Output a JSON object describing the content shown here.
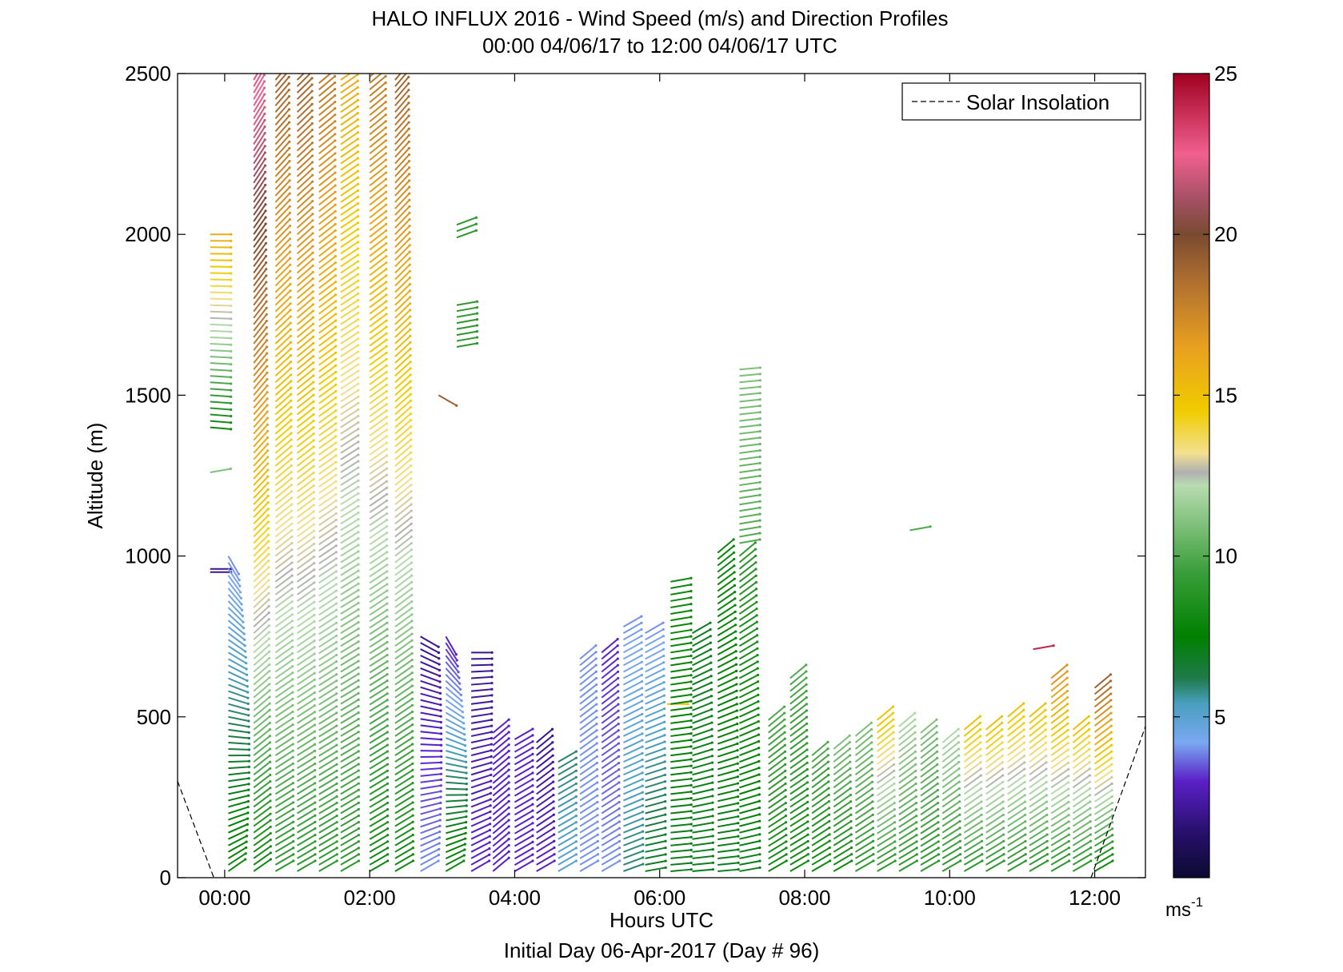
{
  "chart_data": {
    "type": "wind-barb-profile",
    "title": "HALO INFLUX 2016 - Wind Speed (m/s) and Direction Profiles",
    "subtitle": "00:00 04/06/17 to 12:00 04/06/17  UTC",
    "xlabel": "Hours UTC",
    "xlabel2": "Initial Day 06-Apr-2017 (Day # 96)",
    "ylabel": "Altitude (m)",
    "xlim": [
      -0.65,
      12.7
    ],
    "ylim": [
      0,
      2500
    ],
    "x_ticks": [
      0,
      2,
      4,
      6,
      8,
      10,
      12
    ],
    "x_tick_labels": [
      "00:00",
      "02:00",
      "04:00",
      "06:00",
      "08:00",
      "10:00",
      "12:00"
    ],
    "y_ticks": [
      0,
      500,
      1000,
      1500,
      2000,
      2500
    ],
    "y_tick_labels": [
      "0",
      "500",
      "1000",
      "1500",
      "2000",
      "2500"
    ],
    "grid": false,
    "legend": {
      "position": "top-right",
      "entries": [
        "Solar Insolation"
      ]
    },
    "colorbar": {
      "range": [
        0,
        25
      ],
      "ticks": [
        5,
        10,
        15,
        20,
        25
      ],
      "tick_labels": [
        "5",
        "10",
        "15",
        "20",
        "25"
      ],
      "unit_label": "ms",
      "unit_exponent": "-1",
      "colors": [
        {
          "value": 0,
          "color": "#0a0a30"
        },
        {
          "value": 1.5,
          "color": "#2a1070"
        },
        {
          "value": 3,
          "color": "#5a20c8"
        },
        {
          "value": 4.2,
          "color": "#7aa8f0"
        },
        {
          "value": 5.4,
          "color": "#4a9fc0"
        },
        {
          "value": 6.2,
          "color": "#1f7a4a"
        },
        {
          "value": 7.5,
          "color": "#008000"
        },
        {
          "value": 9.5,
          "color": "#3a9e3a"
        },
        {
          "value": 12.2,
          "color": "#b8dcb0"
        },
        {
          "value": 12.6,
          "color": "#b0b0b0"
        },
        {
          "value": 13.2,
          "color": "#f2e090"
        },
        {
          "value": 14.5,
          "color": "#f0cc00"
        },
        {
          "value": 16.5,
          "color": "#e8a020"
        },
        {
          "value": 18.5,
          "color": "#b07030"
        },
        {
          "value": 20,
          "color": "#7a4a30"
        },
        {
          "value": 21,
          "color": "#a05060"
        },
        {
          "value": 22.5,
          "color": "#f06090"
        },
        {
          "value": 25,
          "color": "#a00020"
        }
      ]
    },
    "solar_insolation": [
      {
        "name": "Solar Insolation",
        "points": [
          [
            -0.65,
            300
          ],
          [
            -0.15,
            0
          ]
        ]
      },
      {
        "name": "Solar Insolation",
        "points": [
          [
            11.95,
            0
          ],
          [
            12.7,
            470
          ]
        ]
      }
    ],
    "profiles": [
      {
        "time": -0.2,
        "top": 1260,
        "bottom": 1260,
        "speed": [
          11,
          11
        ],
        "dir": [
          -10,
          -10
        ]
      },
      {
        "time": -0.2,
        "top": 2000,
        "bottom": 1400,
        "speed": [
          16,
          8
        ],
        "dir": [
          0,
          5
        ]
      },
      {
        "time": -0.2,
        "top": 960,
        "bottom": 950,
        "speed": [
          2,
          2
        ],
        "dir": [
          0,
          0
        ]
      },
      {
        "time": 0.05,
        "top": 1000,
        "bottom": 20,
        "speed": [
          4,
          8
        ],
        "dir": [
          60,
          -35
        ]
      },
      {
        "time": 0.4,
        "top": 2500,
        "bottom": 20,
        "speed": [
          23,
          8
        ],
        "dir": [
          -60,
          -35
        ]
      },
      {
        "time": 0.7,
        "top": 2500,
        "bottom": 20,
        "speed": [
          19,
          9
        ],
        "dir": [
          -50,
          -30
        ]
      },
      {
        "time": 1.0,
        "top": 2500,
        "bottom": 20,
        "speed": [
          19,
          9
        ],
        "dir": [
          -45,
          -30
        ]
      },
      {
        "time": 1.3,
        "top": 2470,
        "bottom": 20,
        "speed": [
          18,
          9
        ],
        "dir": [
          -40,
          -30
        ]
      },
      {
        "time": 1.6,
        "top": 2500,
        "bottom": 20,
        "speed": [
          16,
          9
        ],
        "dir": [
          -35,
          -30
        ]
      },
      {
        "time": 2.0,
        "top": 2490,
        "bottom": 20,
        "speed": [
          18,
          8
        ],
        "dir": [
          -40,
          -30
        ]
      },
      {
        "time": 2.35,
        "top": 2500,
        "bottom": 20,
        "speed": [
          19,
          8
        ],
        "dir": [
          -50,
          -30
        ]
      },
      {
        "time": 2.7,
        "top": 750,
        "bottom": 20,
        "speed": [
          2,
          4
        ],
        "dir": [
          30,
          -30
        ]
      },
      {
        "time": 2.95,
        "top": 1500,
        "bottom": 1500,
        "speed": [
          19,
          19
        ],
        "dir": [
          30,
          30
        ]
      },
      {
        "time": 3.05,
        "top": 750,
        "bottom": 20,
        "speed": [
          3,
          8
        ],
        "dir": [
          60,
          -30
        ]
      },
      {
        "time": 3.2,
        "top": 2030,
        "bottom": 1990,
        "speed": [
          9,
          9
        ],
        "dir": [
          -20,
          -20
        ]
      },
      {
        "time": 3.2,
        "top": 1780,
        "bottom": 1650,
        "speed": [
          9,
          9
        ],
        "dir": [
          -10,
          -10
        ]
      },
      {
        "time": 3.4,
        "top": 700,
        "bottom": 20,
        "speed": [
          2,
          3
        ],
        "dir": [
          0,
          -30
        ]
      },
      {
        "time": 3.7,
        "top": 450,
        "bottom": 20,
        "speed": [
          3,
          3
        ],
        "dir": [
          -40,
          -40
        ]
      },
      {
        "time": 4.0,
        "top": 430,
        "bottom": 20,
        "speed": [
          3,
          3
        ],
        "dir": [
          -30,
          -30
        ]
      },
      {
        "time": 4.3,
        "top": 420,
        "bottom": 20,
        "speed": [
          2,
          3
        ],
        "dir": [
          -40,
          -30
        ]
      },
      {
        "time": 4.6,
        "top": 360,
        "bottom": 20,
        "speed": [
          6,
          5
        ],
        "dir": [
          -30,
          -30
        ]
      },
      {
        "time": 4.9,
        "top": 680,
        "bottom": 20,
        "speed": [
          4,
          4
        ],
        "dir": [
          -40,
          -30
        ]
      },
      {
        "time": 5.2,
        "top": 700,
        "bottom": 20,
        "speed": [
          3,
          4
        ],
        "dir": [
          -40,
          -30
        ]
      },
      {
        "time": 5.5,
        "top": 780,
        "bottom": 20,
        "speed": [
          4,
          6
        ],
        "dir": [
          -30,
          -20
        ]
      },
      {
        "time": 5.8,
        "top": 760,
        "bottom": 20,
        "speed": [
          4,
          7
        ],
        "dir": [
          -30,
          -10
        ]
      },
      {
        "time": 6.1,
        "top": 540,
        "bottom": 540,
        "speed": [
          15,
          15
        ],
        "dir": [
          0,
          0
        ]
      },
      {
        "time": 6.15,
        "top": 920,
        "bottom": 20,
        "speed": [
          8,
          7
        ],
        "dir": [
          -10,
          -5
        ]
      },
      {
        "time": 6.45,
        "top": 760,
        "bottom": 20,
        "speed": [
          7,
          7
        ],
        "dir": [
          -30,
          -5
        ]
      },
      {
        "time": 6.8,
        "top": 1010,
        "bottom": 20,
        "speed": [
          8,
          7
        ],
        "dir": [
          -40,
          -5
        ]
      },
      {
        "time": 7.1,
        "top": 1580,
        "bottom": 1040,
        "speed": [
          11,
          10
        ],
        "dir": [
          -5,
          -10
        ]
      },
      {
        "time": 7.1,
        "top": 1000,
        "bottom": 20,
        "speed": [
          9,
          7
        ],
        "dir": [
          -40,
          -10
        ]
      },
      {
        "time": 7.5,
        "top": 490,
        "bottom": 20,
        "speed": [
          10,
          8
        ],
        "dir": [
          -40,
          -30
        ]
      },
      {
        "time": 7.8,
        "top": 620,
        "bottom": 20,
        "speed": [
          10,
          8
        ],
        "dir": [
          -40,
          -30
        ]
      },
      {
        "time": 8.1,
        "top": 380,
        "bottom": 20,
        "speed": [
          10,
          8
        ],
        "dir": [
          -40,
          -30
        ]
      },
      {
        "time": 8.4,
        "top": 400,
        "bottom": 20,
        "speed": [
          11,
          8
        ],
        "dir": [
          -40,
          -30
        ]
      },
      {
        "time": 8.7,
        "top": 440,
        "bottom": 20,
        "speed": [
          11,
          9
        ],
        "dir": [
          -40,
          -30
        ]
      },
      {
        "time": 9.0,
        "top": 490,
        "bottom": 20,
        "speed": [
          15,
          9
        ],
        "dir": [
          -40,
          -30
        ]
      },
      {
        "time": 9.3,
        "top": 470,
        "bottom": 20,
        "speed": [
          12,
          9
        ],
        "dir": [
          -40,
          -30
        ]
      },
      {
        "time": 9.45,
        "top": 1080,
        "bottom": 1080,
        "speed": [
          10,
          10
        ],
        "dir": [
          -10,
          -10
        ]
      },
      {
        "time": 9.6,
        "top": 450,
        "bottom": 20,
        "speed": [
          11,
          9
        ],
        "dir": [
          -40,
          -30
        ]
      },
      {
        "time": 9.9,
        "top": 420,
        "bottom": 20,
        "speed": [
          12,
          9
        ],
        "dir": [
          -40,
          -30
        ]
      },
      {
        "time": 10.2,
        "top": 460,
        "bottom": 20,
        "speed": [
          15,
          9
        ],
        "dir": [
          -40,
          -30
        ]
      },
      {
        "time": 10.5,
        "top": 460,
        "bottom": 20,
        "speed": [
          15,
          9
        ],
        "dir": [
          -40,
          -30
        ]
      },
      {
        "time": 10.8,
        "top": 500,
        "bottom": 20,
        "speed": [
          15,
          9
        ],
        "dir": [
          -40,
          -30
        ]
      },
      {
        "time": 11.1,
        "top": 500,
        "bottom": 20,
        "speed": [
          15,
          9
        ],
        "dir": [
          -40,
          -30
        ]
      },
      {
        "time": 11.15,
        "top": 710,
        "bottom": 710,
        "speed": [
          24,
          24
        ],
        "dir": [
          -10,
          -10
        ]
      },
      {
        "time": 11.4,
        "top": 620,
        "bottom": 20,
        "speed": [
          17,
          9
        ],
        "dir": [
          -40,
          -30
        ]
      },
      {
        "time": 11.7,
        "top": 460,
        "bottom": 20,
        "speed": [
          15,
          9
        ],
        "dir": [
          -40,
          -30
        ]
      },
      {
        "time": 12.0,
        "top": 590,
        "bottom": 20,
        "speed": [
          19,
          8
        ],
        "dir": [
          -40,
          -30
        ]
      }
    ]
  }
}
